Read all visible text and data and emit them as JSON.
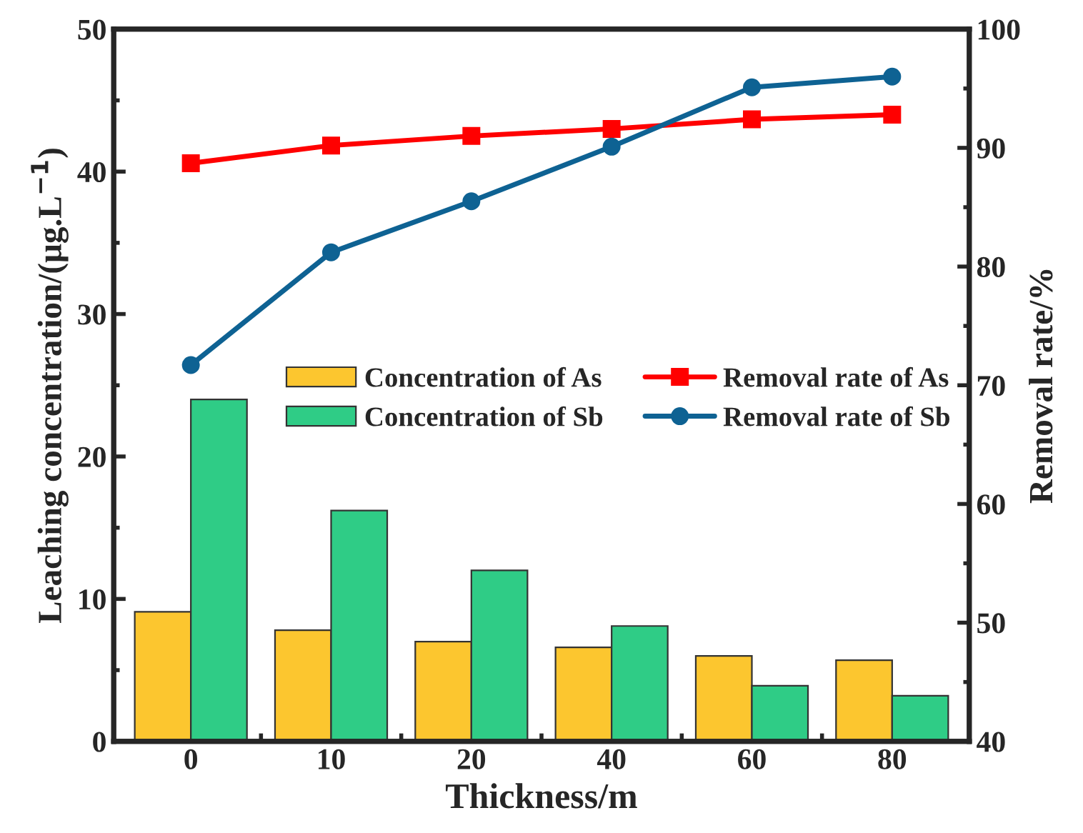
{
  "chart_data": {
    "type": "bar",
    "categories": [
      "0",
      "10",
      "20",
      "40",
      "60",
      "80"
    ],
    "xlabel": "Thickness/m",
    "ylabel": "Leaching concentration/(μg.L$^{−1}$)",
    "y2label": "Removal rate/%",
    "ylim": [
      0,
      50
    ],
    "yticks": [
      0,
      10,
      20,
      30,
      40,
      50
    ],
    "y2lim": [
      40,
      100
    ],
    "y2ticks": [
      40,
      50,
      60,
      70,
      80,
      90,
      100
    ],
    "legend": "center",
    "grid": false,
    "series": [
      {
        "name": "Concentration of As",
        "color": "#fcc62f",
        "values": [
          9.1,
          7.8,
          7.0,
          6.6,
          6.0,
          5.7
        ]
      },
      {
        "name": "Concentration of Sb",
        "color": "#2fcc86",
        "values": [
          24.0,
          16.2,
          12.0,
          8.1,
          3.9,
          3.2
        ]
      },
      {
        "name": "Removal rate of As",
        "type": "line",
        "axis": "y2",
        "marker": "square",
        "color": "#ff0000",
        "values": [
          88.7,
          90.2,
          91.0,
          91.6,
          92.4,
          92.8
        ]
      },
      {
        "name": "Removal rate of Sb",
        "type": "line",
        "axis": "y2",
        "marker": "circle",
        "color": "#0e6293",
        "values": [
          71.7,
          81.2,
          85.5,
          90.1,
          95.1,
          96.0
        ]
      }
    ]
  }
}
